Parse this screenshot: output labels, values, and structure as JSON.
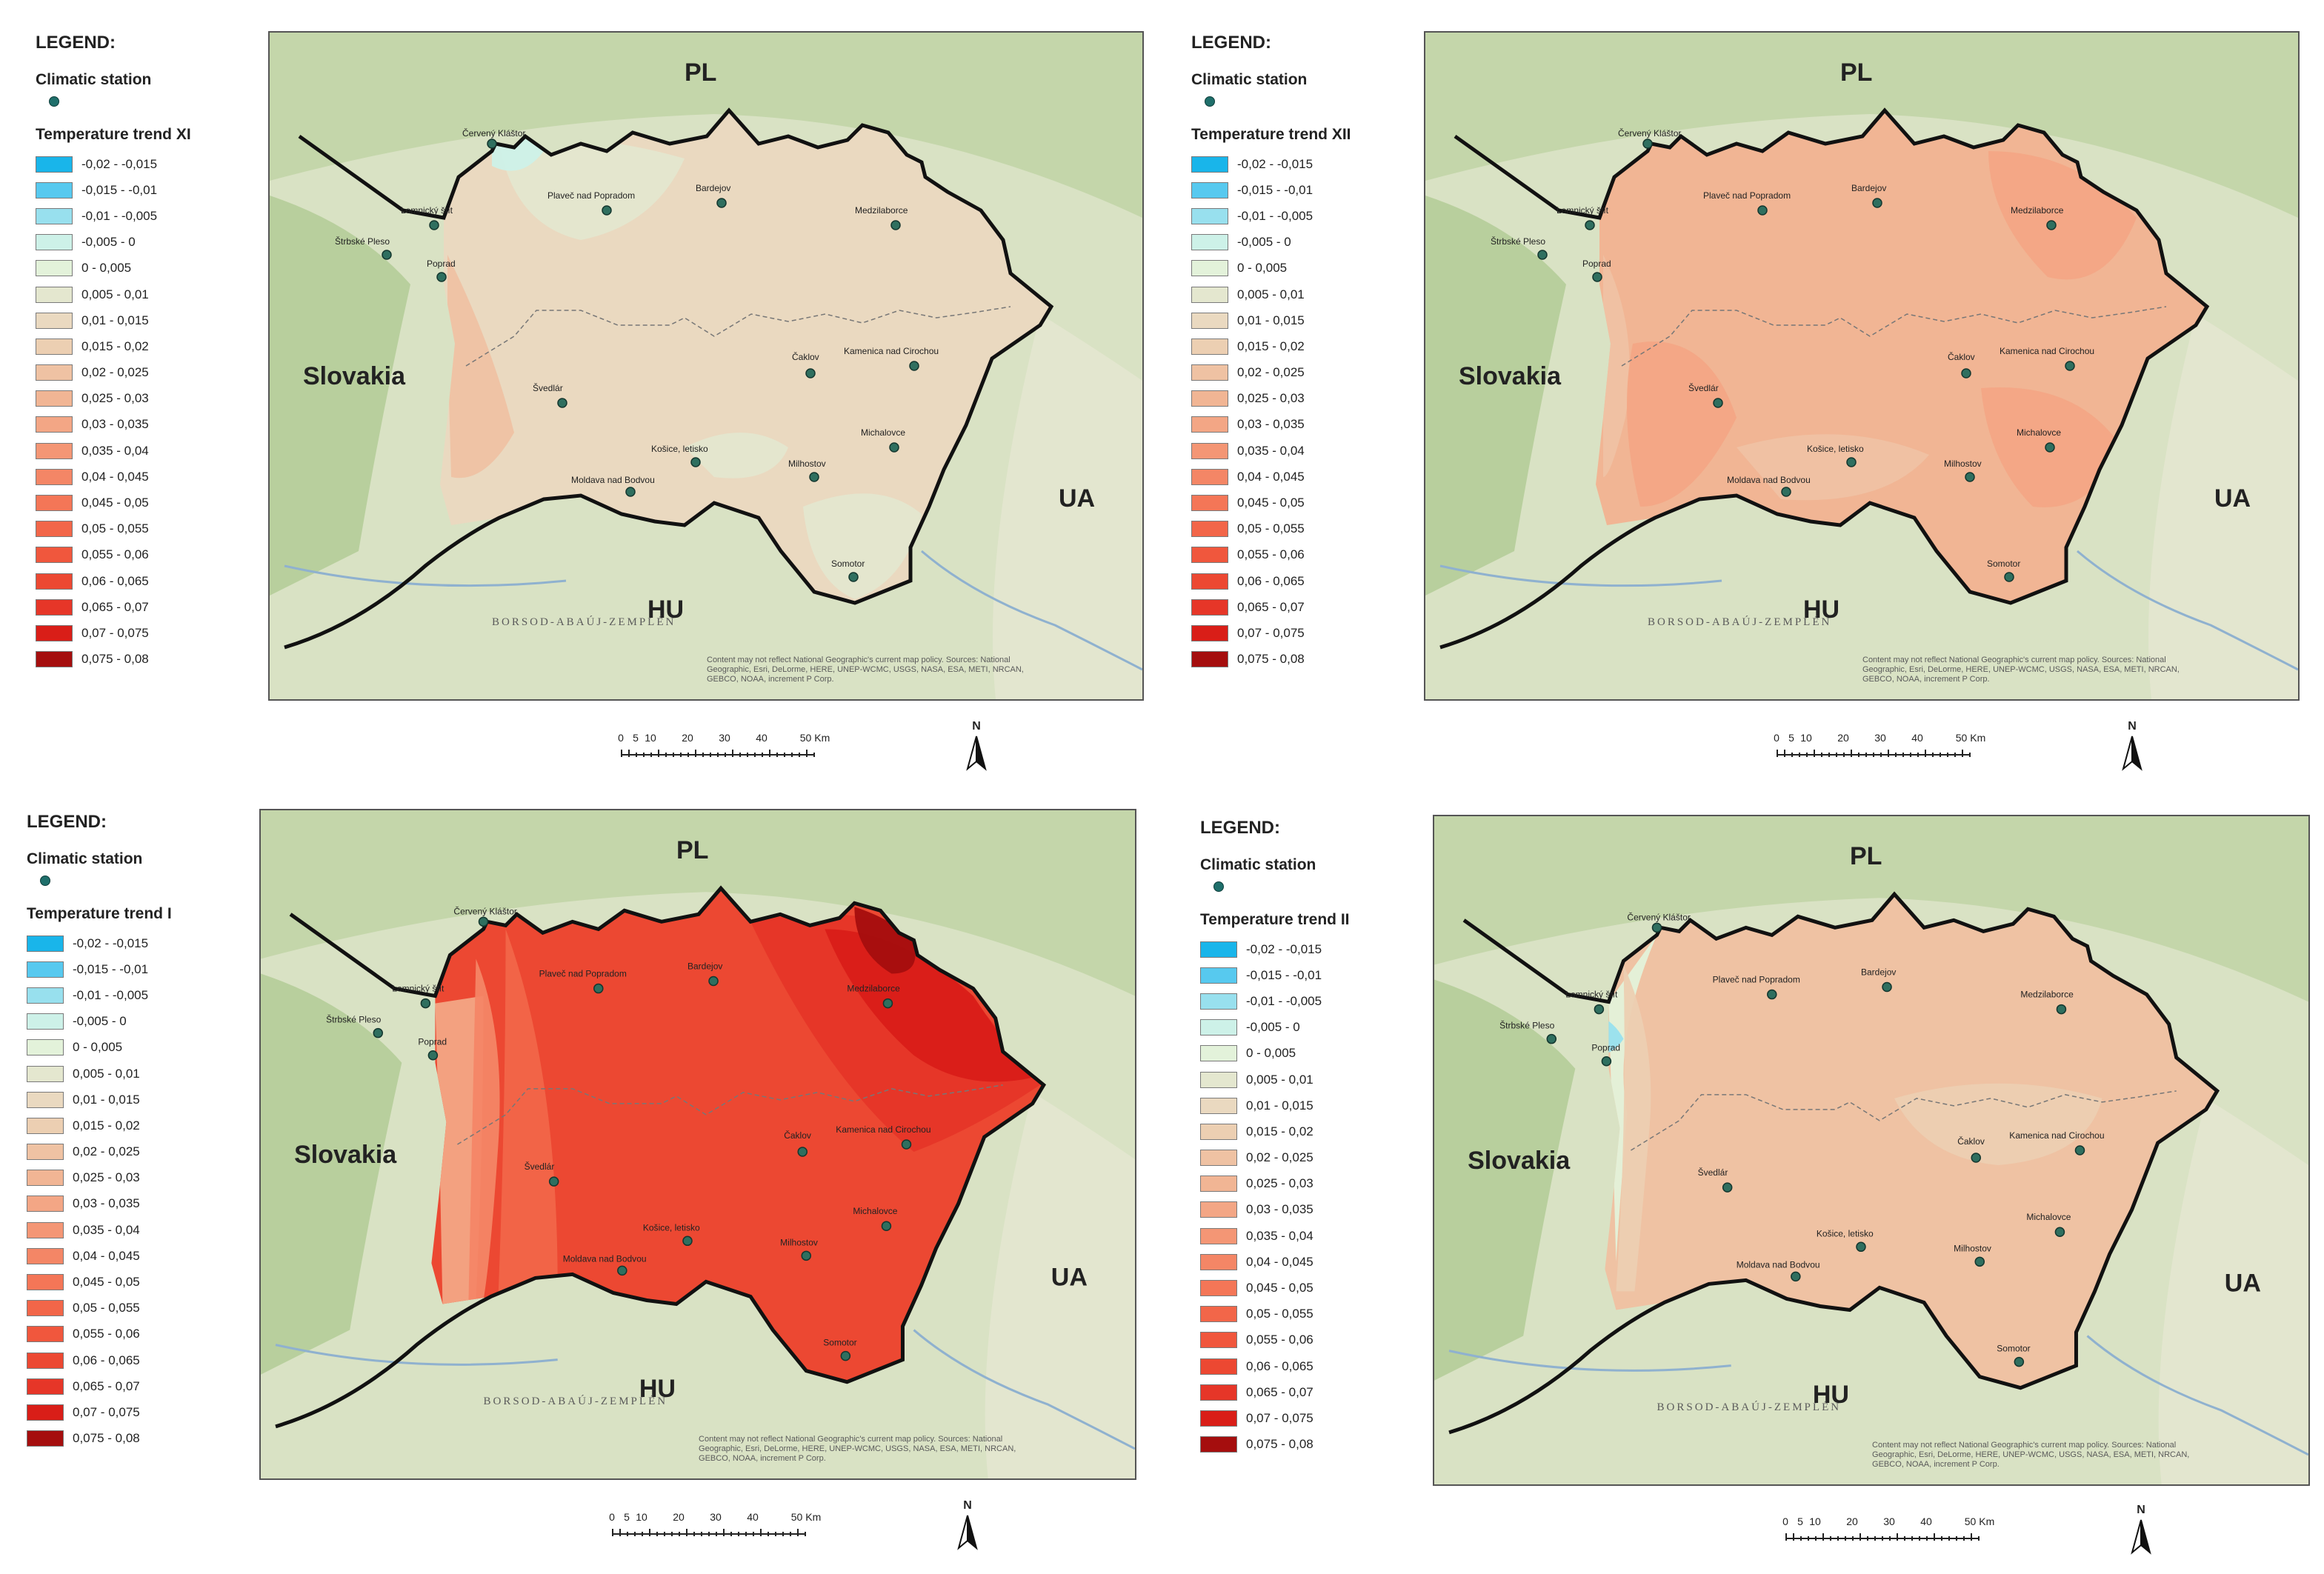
{
  "legend": {
    "heading": "LEGEND:",
    "station_label": "Climatic station",
    "classes": [
      {
        "label": "-0,02 - -0,015",
        "color": "#19b5ea"
      },
      {
        "label": "-0,015 - -0,01",
        "color": "#57c9ef"
      },
      {
        "label": "-0,01 - -0,005",
        "color": "#98e0ee"
      },
      {
        "label": "-0,005 - 0",
        "color": "#cdf1e8"
      },
      {
        "label": "0 - 0,005",
        "color": "#e3f2da"
      },
      {
        "label": "0,005 - 0,01",
        "color": "#e4e7cf"
      },
      {
        "label": "0,01 - 0,015",
        "color": "#ead9c0"
      },
      {
        "label": "0,015 - 0,02",
        "color": "#eccfb2"
      },
      {
        "label": "0,02 - 0,025",
        "color": "#efc2a3"
      },
      {
        "label": "0,025 - 0,03",
        "color": "#f1b594"
      },
      {
        "label": "0,03 - 0,035",
        "color": "#f3a685"
      },
      {
        "label": "0,035 - 0,04",
        "color": "#f49675"
      },
      {
        "label": "0,04 - 0,045",
        "color": "#f48666"
      },
      {
        "label": "0,045 - 0,05",
        "color": "#f47657"
      },
      {
        "label": "0,05 - 0,055",
        "color": "#f26649"
      },
      {
        "label": "0,055 - 0,06",
        "color": "#f0573d"
      },
      {
        "label": "0,06 - 0,065",
        "color": "#ec4832"
      },
      {
        "label": "0,065 - 0,07",
        "color": "#e63628"
      },
      {
        "label": "0,07 - 0,075",
        "color": "#d91e18"
      },
      {
        "label": "0,075 - 0,08",
        "color": "#a50e0e"
      }
    ]
  },
  "panels": [
    {
      "trend_title": "Temperature trend XI"
    },
    {
      "trend_title": "Temperature trend XII"
    },
    {
      "trend_title": "Temperature trend I"
    },
    {
      "trend_title": "Temperature trend II"
    }
  ],
  "map_labels": {
    "country_pl": "PL",
    "country_hu": "HU",
    "country_ua": "UA",
    "country_sk": "Slovakia",
    "region": "BORSOD-ABAÚJ-ZEMPLÉN",
    "credits_1": "Content may not reflect National Geographic's current map policy. Sources: National",
    "credits_2": "Geographic, Esri, DeLorme, HERE, UNEP-WCMC, USGS, NASA, ESA, METI, NRCAN,",
    "credits_3": "GEBCO, NOAA, increment P Corp."
  },
  "stations": [
    "Červený Kláštor",
    "Plaveč nad Popradom",
    "Bardejov",
    "Medzilaborce",
    "Lomnický štít",
    "Štrbské Pleso",
    "Poprad",
    "Kamenica nad Cirochou",
    "Čaklov",
    "Švedlár",
    "Michalovce",
    "Košice, letisko",
    "Milhostov",
    "Moldava nad Bodvou",
    "Somotor"
  ],
  "scale": {
    "ticks": [
      "0",
      "5",
      "10",
      "20",
      "30",
      "40",
      "50 Km"
    ]
  },
  "north_label": "N"
}
